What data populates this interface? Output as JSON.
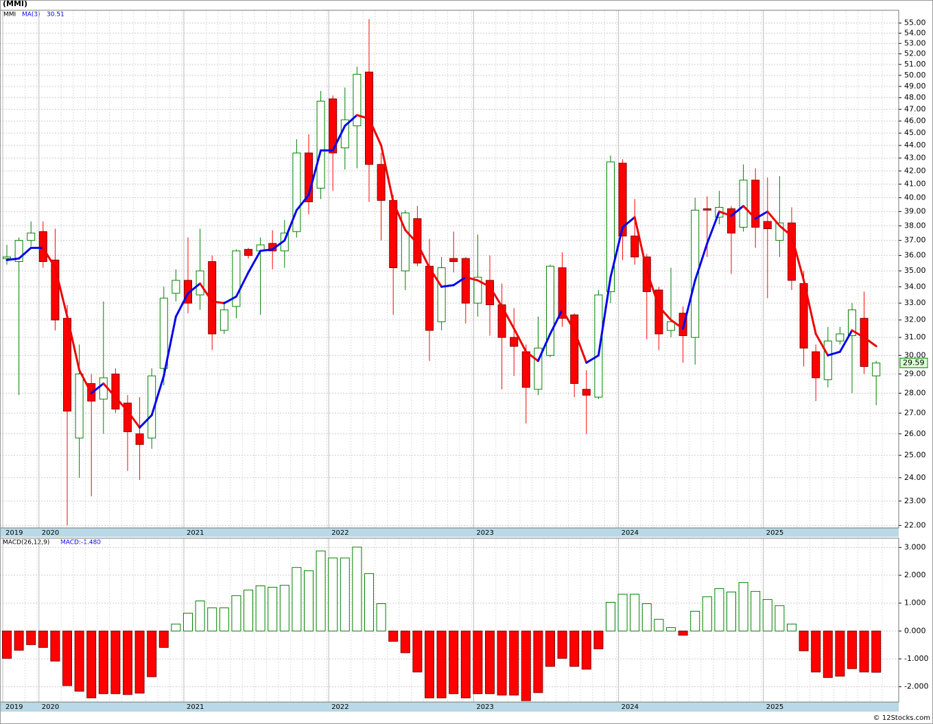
{
  "chart_data": [
    {
      "type": "candlestick",
      "title": "(MMI)",
      "categories": [
        "2019",
        null,
        null,
        "2020",
        null,
        null,
        null,
        null,
        null,
        null,
        null,
        null,
        null,
        null,
        null,
        "2021",
        null,
        null,
        null,
        null,
        null,
        null,
        null,
        null,
        null,
        null,
        null,
        "2022",
        null,
        null,
        null,
        null,
        null,
        null,
        null,
        null,
        null,
        null,
        null,
        "2023",
        null,
        null,
        null,
        null,
        null,
        null,
        null,
        null,
        null,
        null,
        null,
        "2024",
        null,
        null,
        null,
        null,
        null,
        null,
        null,
        null,
        null,
        null,
        null,
        "2025",
        null,
        null,
        null,
        null,
        null,
        null,
        null,
        null,
        null
      ],
      "series": [
        {
          "name": "MMI",
          "up_color": "#008000",
          "down_color": "#ff0000",
          "open": [
            35.8,
            35.6,
            37.0,
            37.6,
            35.7,
            32.1,
            25.8,
            28.5,
            27.7,
            29.0,
            27.5,
            26.0,
            25.8,
            29.3,
            33.6,
            34.4,
            33.5,
            35.6,
            31.4,
            32.8,
            36.4,
            36.3,
            36.8,
            36.3,
            37.6,
            43.4,
            40.7,
            47.9,
            43.8,
            45.6,
            50.3,
            42.5,
            39.8,
            35.0,
            38.5,
            35.3,
            31.9,
            35.8,
            35.8,
            33.0,
            34.4,
            32.9,
            31.0,
            30.2,
            28.2,
            30.0,
            35.2,
            32.3,
            28.2,
            27.8,
            33.7,
            42.6,
            37.3,
            35.9,
            33.8,
            31.4,
            32.4,
            31.0,
            39.2,
            38.6,
            39.2,
            37.9,
            41.3,
            38.3,
            37.0,
            38.2,
            34.2,
            30.2,
            28.7,
            30.8,
            31.1,
            32.1,
            28.9
          ],
          "high": [
            36.7,
            37.2,
            38.3,
            38.3,
            37.8,
            32.9,
            30.6,
            29.0,
            33.1,
            29.3,
            27.9,
            27.8,
            29.3,
            34.0,
            35.1,
            37.2,
            37.8,
            36.0,
            33.1,
            36.4,
            36.5,
            37.2,
            37.7,
            38.4,
            44.5,
            44.9,
            48.6,
            48.2,
            48.9,
            50.8,
            55.4,
            43.4,
            40.2,
            39.1,
            39.4,
            37.1,
            35.9,
            37.6,
            35.9,
            37.4,
            36.0,
            34.2,
            32.7,
            30.6,
            32.2,
            35.4,
            36.2,
            32.4,
            29.2,
            33.8,
            43.2,
            42.9,
            39.9,
            36.1,
            34.0,
            35.2,
            32.8,
            40.0,
            40.1,
            40.5,
            39.4,
            42.5,
            42.2,
            41.5,
            41.6,
            39.3,
            35.0,
            30.6,
            31.6,
            31.6,
            33.0,
            33.7,
            29.7
          ],
          "low": [
            35.4,
            27.9,
            36.6,
            35.2,
            31.4,
            22.0,
            24.0,
            23.2,
            26.0,
            27.0,
            24.3,
            23.9,
            25.3,
            28.4,
            33.1,
            32.4,
            32.6,
            30.3,
            31.2,
            32.1,
            35.8,
            32.3,
            35.1,
            35.2,
            37.2,
            38.8,
            39.9,
            40.5,
            42.1,
            42.2,
            39.7,
            37.0,
            32.3,
            33.8,
            35.3,
            29.7,
            31.4,
            34.9,
            31.8,
            32.2,
            31.1,
            28.2,
            28.9,
            26.5,
            27.9,
            29.9,
            31.6,
            27.8,
            26.0,
            27.7,
            33.0,
            35.7,
            35.4,
            30.9,
            30.3,
            31.0,
            29.6,
            29.5,
            35.9,
            38.1,
            34.8,
            37.6,
            36.5,
            33.3,
            35.9,
            33.8,
            29.4,
            27.6,
            28.3,
            30.6,
            28.0,
            29.0,
            27.4
          ],
          "close": [
            35.9,
            37.0,
            37.5,
            35.6,
            32.0,
            27.1,
            29.0,
            27.6,
            28.8,
            27.2,
            26.1,
            25.5,
            28.9,
            33.3,
            34.4,
            33.0,
            35.0,
            31.2,
            32.6,
            36.3,
            36.0,
            36.7,
            36.3,
            37.5,
            43.4,
            39.7,
            47.7,
            43.4,
            46.1,
            50.1,
            42.5,
            39.8,
            35.2,
            38.9,
            35.5,
            31.4,
            35.2,
            35.6,
            33.0,
            34.6,
            32.9,
            31.0,
            30.5,
            28.3,
            30.4,
            35.3,
            32.1,
            28.5,
            27.9,
            33.5,
            42.7,
            37.3,
            35.9,
            33.7,
            31.2,
            31.9,
            31.1,
            39.1,
            39.1,
            39.3,
            37.5,
            41.3,
            37.9,
            37.8,
            38.2,
            34.4,
            30.4,
            28.8,
            30.8,
            31.2,
            32.6,
            29.4,
            29.59
          ]
        }
      ],
      "moving_average": {
        "name": "MA(3)",
        "up_color": "#0000ee",
        "down_color": "#ee0000",
        "values": [
          35.7,
          35.8,
          36.5,
          36.5,
          35.2,
          32.2,
          29.2,
          28.0,
          28.5,
          27.8,
          27.1,
          26.3,
          26.9,
          28.9,
          32.2,
          33.6,
          34.2,
          33.1,
          33.0,
          33.4,
          34.9,
          36.3,
          36.4,
          37.0,
          39.1,
          40.2,
          43.6,
          43.6,
          45.6,
          46.5,
          46.2,
          44.0,
          39.7,
          37.7,
          36.8,
          35.2,
          34.0,
          34.1,
          34.6,
          34.4,
          34.0,
          32.8,
          31.5,
          30.2,
          29.7,
          31.2,
          32.6,
          31.4,
          29.6,
          30.0,
          34.6,
          37.9,
          38.6,
          35.0,
          32.8,
          32.0,
          31.5,
          34.4,
          36.8,
          39.0,
          38.7,
          39.4,
          38.5,
          39.0,
          38.0,
          37.3,
          34.4,
          31.2,
          30.0,
          30.2,
          31.4,
          31.0,
          30.51
        ]
      },
      "ylim": [
        21.9,
        56.3
      ],
      "log_scale": true,
      "grid": true,
      "yticks": [
        {
          "value": 22,
          "label": "22.00"
        },
        {
          "value": 23,
          "label": "23.00"
        },
        {
          "value": 24,
          "label": "24.00"
        },
        {
          "value": 25,
          "label": "25.00"
        },
        {
          "value": 26,
          "label": "26.00"
        },
        {
          "value": 27,
          "label": "27.00"
        },
        {
          "value": 28,
          "label": "28.00"
        },
        {
          "value": 29,
          "label": "29.00"
        },
        {
          "value": 30,
          "label": "30.00"
        },
        {
          "value": 31,
          "label": "31.00"
        },
        {
          "value": 32,
          "label": "32.00"
        },
        {
          "value": 33,
          "label": "33.00"
        },
        {
          "value": 34,
          "label": "34.00"
        },
        {
          "value": 35,
          "label": "35.00"
        },
        {
          "value": 36,
          "label": "36.00"
        },
        {
          "value": 37,
          "label": "37.00"
        },
        {
          "value": 38,
          "label": "38.00"
        },
        {
          "value": 39,
          "label": "39.00"
        },
        {
          "value": 40,
          "label": "40.00"
        },
        {
          "value": 41,
          "label": "41.00"
        },
        {
          "value": 42,
          "label": "42.00"
        },
        {
          "value": 43,
          "label": "43.00"
        },
        {
          "value": 44,
          "label": "44.00"
        },
        {
          "value": 45,
          "label": "45.00"
        },
        {
          "value": 46,
          "label": "46.00"
        },
        {
          "value": 47,
          "label": "47.00"
        },
        {
          "value": 48,
          "label": "48.00"
        },
        {
          "value": 49,
          "label": "49.00"
        },
        {
          "value": 50,
          "label": "50.00"
        },
        {
          "value": 51,
          "label": "51.00"
        },
        {
          "value": 52,
          "label": "52.00"
        },
        {
          "value": 53,
          "label": "53.00"
        },
        {
          "value": 54,
          "label": "54.00"
        },
        {
          "value": 55,
          "label": "55.00"
        }
      ]
    },
    {
      "type": "bar",
      "title": "MACD(26,12,9)",
      "legend_label": "MACD:-1.480",
      "values": [
        -0.98,
        -0.69,
        -0.49,
        -0.59,
        -1.08,
        -1.96,
        -2.16,
        -2.4,
        -2.25,
        -2.25,
        -2.28,
        -2.23,
        -1.64,
        -0.59,
        0.25,
        0.64,
        1.08,
        0.83,
        0.83,
        1.27,
        1.47,
        1.62,
        1.57,
        1.64,
        2.28,
        2.16,
        2.87,
        2.62,
        2.62,
        3.01,
        2.06,
        0.98,
        -0.37,
        -0.78,
        -1.47,
        -2.4,
        -2.4,
        -2.25,
        -2.4,
        -2.25,
        -2.25,
        -2.3,
        -2.3,
        -2.5,
        -2.21,
        -1.27,
        -0.98,
        -1.27,
        -1.37,
        -0.64,
        1.03,
        1.32,
        1.32,
        0.98,
        0.42,
        0.12,
        -0.15,
        0.71,
        1.23,
        1.52,
        1.4,
        1.74,
        1.42,
        1.13,
        0.91,
        0.25,
        -0.71,
        -1.47,
        -1.67,
        -1.62,
        -1.35,
        -1.47,
        -1.48
      ],
      "positive_color": "#008000",
      "negative_color": "#ff0000",
      "ylim": [
        -2.55,
        3.33
      ],
      "grid": true,
      "yticks": [
        {
          "value": -2,
          "label": "-2.000"
        },
        {
          "value": -1,
          "label": "-1.000"
        },
        {
          "value": 0,
          "label": "0.000"
        },
        {
          "value": 1,
          "label": "1.000"
        },
        {
          "value": 2,
          "label": "2.000"
        },
        {
          "value": 3,
          "label": "3.000"
        }
      ]
    }
  ],
  "footer": "© 12Stocks.com"
}
